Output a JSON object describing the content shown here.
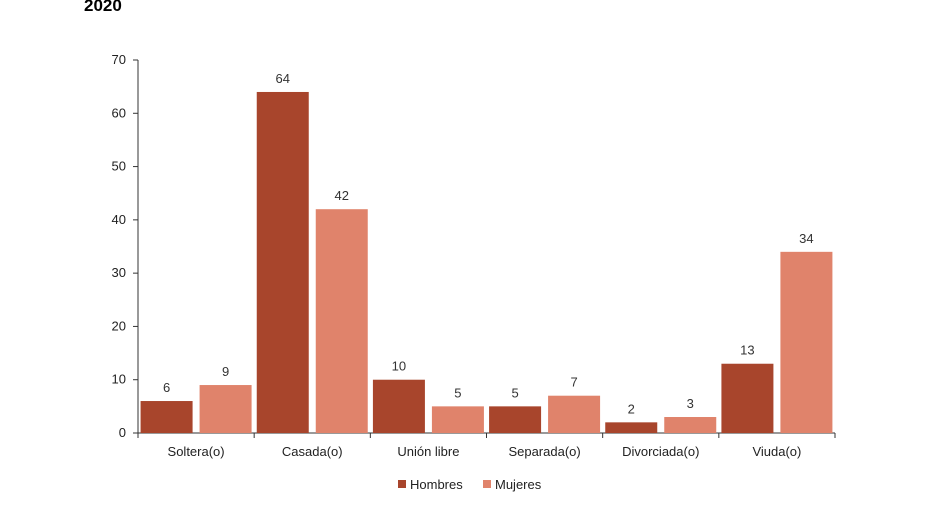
{
  "page": {
    "title": "2020"
  },
  "chart_data": {
    "type": "bar",
    "title": "2020",
    "xlabel": "",
    "ylabel": "",
    "categories": [
      "Soltera(o)",
      "Casada(o)",
      "Unión libre",
      "Separada(o)",
      "Divorciada(o)",
      "Viuda(o)"
    ],
    "series": [
      {
        "name": "Hombres",
        "values": [
          6,
          64,
          10,
          5,
          2,
          13
        ],
        "color": "#a8452c"
      },
      {
        "name": "Mujeres",
        "values": [
          9,
          42,
          5,
          7,
          3,
          34
        ],
        "color": "#e0836b"
      }
    ],
    "ylim": [
      0,
      70
    ],
    "yticks": [
      0,
      10,
      20,
      30,
      40,
      50,
      60,
      70
    ],
    "data_labels": true,
    "grid": false,
    "legend_position": "bottom"
  }
}
